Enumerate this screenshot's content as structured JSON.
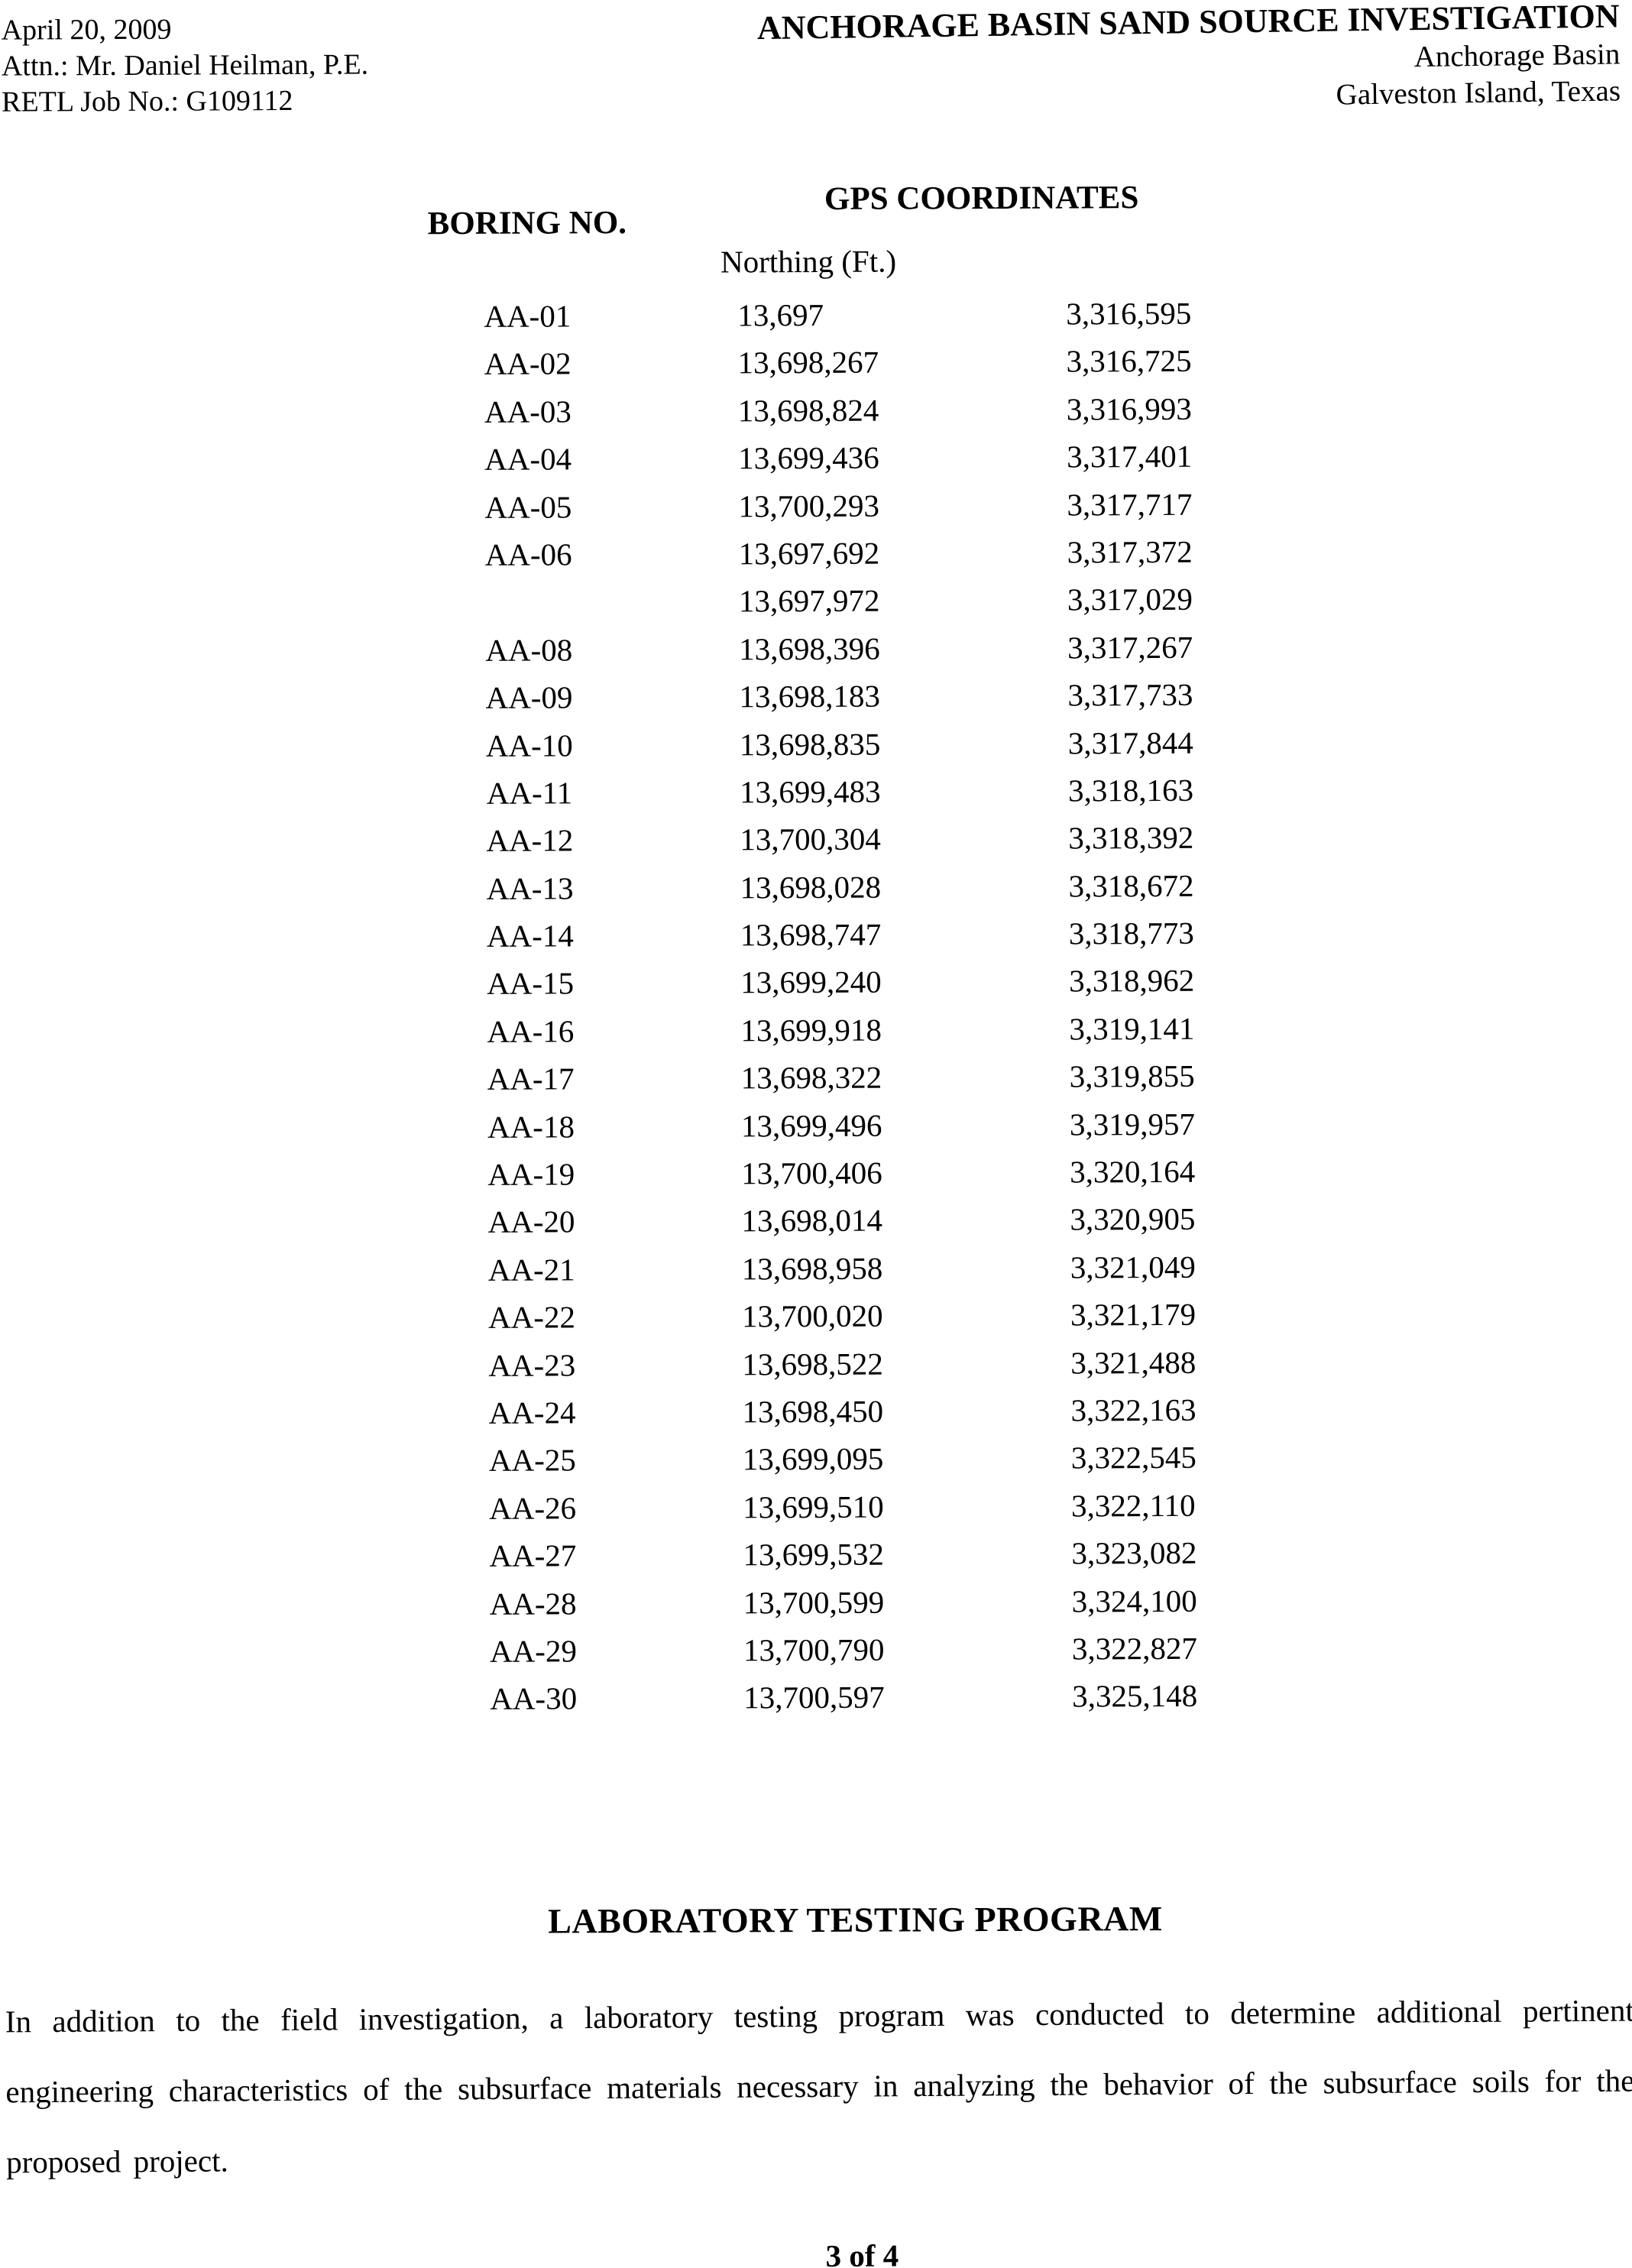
{
  "page": {
    "header_left": {
      "date": "April 20, 2009",
      "attn": "Attn.: Mr. Daniel Heilman, P.E.",
      "job": "RETL Job No.: G109112"
    },
    "header_right": {
      "title": "ANCHORAGE BASIN SAND SOURCE INVESTIGATION",
      "subtitle1": "Anchorage Basin",
      "subtitle2": "Galveston Island, Texas"
    },
    "table": {
      "boring_header": "BORING NO.",
      "gps_header": "GPS COORDINATES",
      "northing_label": "Northing (Ft.)",
      "rows": [
        {
          "boring": "AA-01",
          "northing": "13,697",
          "easting": "3,316,595"
        },
        {
          "boring": "AA-02",
          "northing": "13,698,267",
          "easting": "3,316,725"
        },
        {
          "boring": "AA-03",
          "northing": "13,698,824",
          "easting": "3,316,993"
        },
        {
          "boring": "AA-04",
          "northing": "13,699,436",
          "easting": "3,317,401"
        },
        {
          "boring": "AA-05",
          "northing": "13,700,293",
          "easting": "3,317,717"
        },
        {
          "boring": "AA-06",
          "northing": "13,697,692",
          "easting": "3,317,372"
        },
        {
          "boring": "",
          "northing": "13,697,972",
          "easting": "3,317,029"
        },
        {
          "boring": "AA-08",
          "northing": "13,698,396",
          "easting": "3,317,267"
        },
        {
          "boring": "AA-09",
          "northing": "13,698,183",
          "easting": "3,317,733"
        },
        {
          "boring": "AA-10",
          "northing": "13,698,835",
          "easting": "3,317,844"
        },
        {
          "boring": "AA-11",
          "northing": "13,699,483",
          "easting": "3,318,163"
        },
        {
          "boring": "AA-12",
          "northing": "13,700,304",
          "easting": "3,318,392"
        },
        {
          "boring": "AA-13",
          "northing": "13,698,028",
          "easting": "3,318,672"
        },
        {
          "boring": "AA-14",
          "northing": "13,698,747",
          "easting": "3,318,773"
        },
        {
          "boring": "AA-15",
          "northing": "13,699,240",
          "easting": "3,318,962"
        },
        {
          "boring": "AA-16",
          "northing": "13,699,918",
          "easting": "3,319,141"
        },
        {
          "boring": "AA-17",
          "northing": "13,698,322",
          "easting": "3,319,855"
        },
        {
          "boring": "AA-18",
          "northing": "13,699,496",
          "easting": "3,319,957"
        },
        {
          "boring": "AA-19",
          "northing": "13,700,406",
          "easting": "3,320,164"
        },
        {
          "boring": "AA-20",
          "northing": "13,698,014",
          "easting": "3,320,905"
        },
        {
          "boring": "AA-21",
          "northing": "13,698,958",
          "easting": "3,321,049"
        },
        {
          "boring": "AA-22",
          "northing": "13,700,020",
          "easting": "3,321,179"
        },
        {
          "boring": "AA-23",
          "northing": "13,698,522",
          "easting": "3,321,488"
        },
        {
          "boring": "AA-24",
          "northing": "13,698,450",
          "easting": "3,322,163"
        },
        {
          "boring": "AA-25",
          "northing": "13,699,095",
          "easting": "3,322,545"
        },
        {
          "boring": "AA-26",
          "northing": "13,699,510",
          "easting": "3,322,110"
        },
        {
          "boring": "AA-27",
          "northing": "13,699,532",
          "easting": "3,323,082"
        },
        {
          "boring": "AA-28",
          "northing": "13,700,599",
          "easting": "3,324,100"
        },
        {
          "boring": "AA-29",
          "northing": "13,700,790",
          "easting": "3,322,827"
        },
        {
          "boring": "AA-30",
          "northing": "13,700,597",
          "easting": "3,325,148"
        }
      ]
    },
    "section": {
      "heading": "LABORATORY TESTING PROGRAM",
      "paragraph": "In addition to the field investigation, a laboratory testing program was conducted to determine additional pertinent engineering characteristics of the subsurface materials necessary in analyzing the behavior of the subsurface soils for the proposed project."
    },
    "footer": {
      "page_number": "3 of 4"
    }
  }
}
